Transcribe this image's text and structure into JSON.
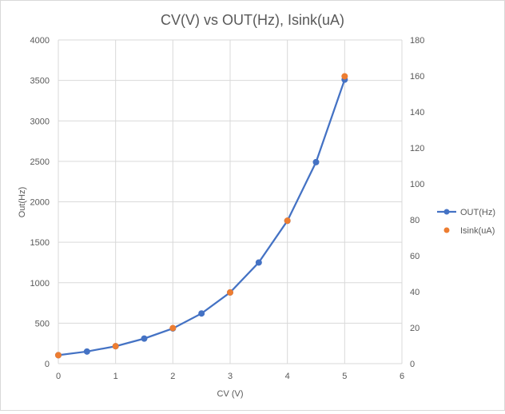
{
  "chart_data": {
    "type": "scatter",
    "title": "CV(V) vs OUT(Hz), Isink(uA)",
    "xlabel": "CV (V)",
    "ylabel": "Out(Hz)",
    "y2label": "",
    "xlim": [
      0,
      6
    ],
    "ylim": [
      0,
      4000
    ],
    "y2lim": [
      0,
      180
    ],
    "x_ticks": [
      0,
      1,
      2,
      3,
      4,
      5,
      6
    ],
    "y_ticks": [
      0,
      500,
      1000,
      1500,
      2000,
      2500,
      3000,
      3500,
      4000
    ],
    "y2_ticks": [
      0,
      20,
      40,
      60,
      80,
      100,
      120,
      140,
      160,
      180
    ],
    "grid": true,
    "legend_position": "right",
    "series": [
      {
        "name": "OUT(Hz)",
        "axis": "left",
        "color": "#4472c4",
        "line": true,
        "x": [
          0,
          0.5,
          1,
          1.5,
          2,
          2.5,
          3,
          3.5,
          4,
          4.5,
          5
        ],
        "y": [
          105,
          150,
          215,
          310,
          435,
          620,
          880,
          1250,
          1765,
          2490,
          3510
        ]
      },
      {
        "name": "Isink(uA)",
        "axis": "right",
        "color": "#ed7d31",
        "line": false,
        "x": [
          0,
          1,
          2,
          3,
          4,
          5
        ],
        "y": [
          4.7,
          9.7,
          19.8,
          39.6,
          79.5,
          159.8
        ]
      }
    ]
  }
}
